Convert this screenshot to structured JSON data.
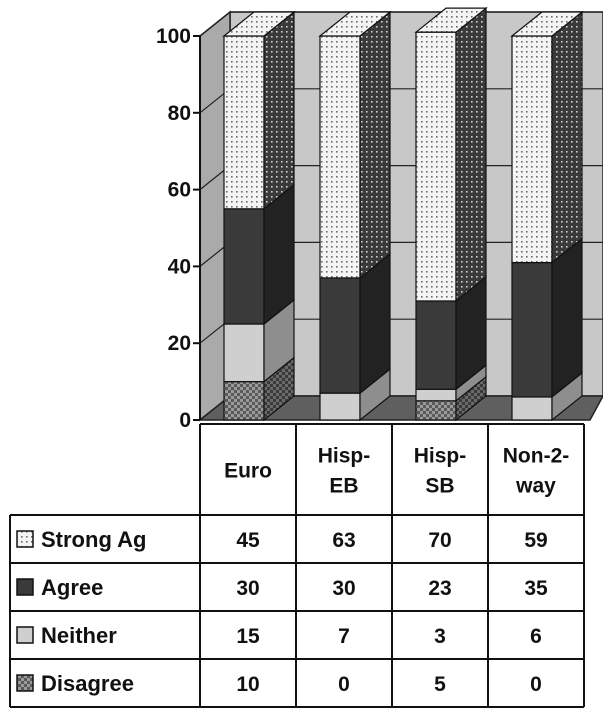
{
  "chart_data": {
    "type": "bar",
    "stacked": true,
    "three_d": true,
    "categories": [
      "Euro",
      "Hisp-EB",
      "Hisp-SB",
      "Non-2-way"
    ],
    "category_label_lines": [
      [
        "Euro"
      ],
      [
        "Hisp-",
        "EB"
      ],
      [
        "Hisp-",
        "SB"
      ],
      [
        "Non-2-",
        "way"
      ]
    ],
    "series": [
      {
        "name": "Disagree",
        "values": [
          10,
          0,
          5,
          0
        ],
        "color": "#8a8a8a",
        "pattern": "checker"
      },
      {
        "name": "Neither",
        "values": [
          15,
          7,
          3,
          6
        ],
        "color": "#cfcfcf",
        "pattern": "solid"
      },
      {
        "name": "Agree",
        "values": [
          30,
          30,
          23,
          35
        ],
        "color": "#3c3c3c",
        "pattern": "solid"
      },
      {
        "name": "Strong Ag",
        "values": [
          45,
          63,
          70,
          59
        ],
        "color": "#f2f2f2",
        "pattern": "dots"
      }
    ],
    "table_rows_order": [
      "Strong Ag",
      "Agree",
      "Neither",
      "Disagree"
    ],
    "ylim": [
      0,
      100
    ],
    "yticks": [
      0,
      20,
      40,
      60,
      80,
      100
    ],
    "grid": true,
    "legend": "data-table"
  }
}
